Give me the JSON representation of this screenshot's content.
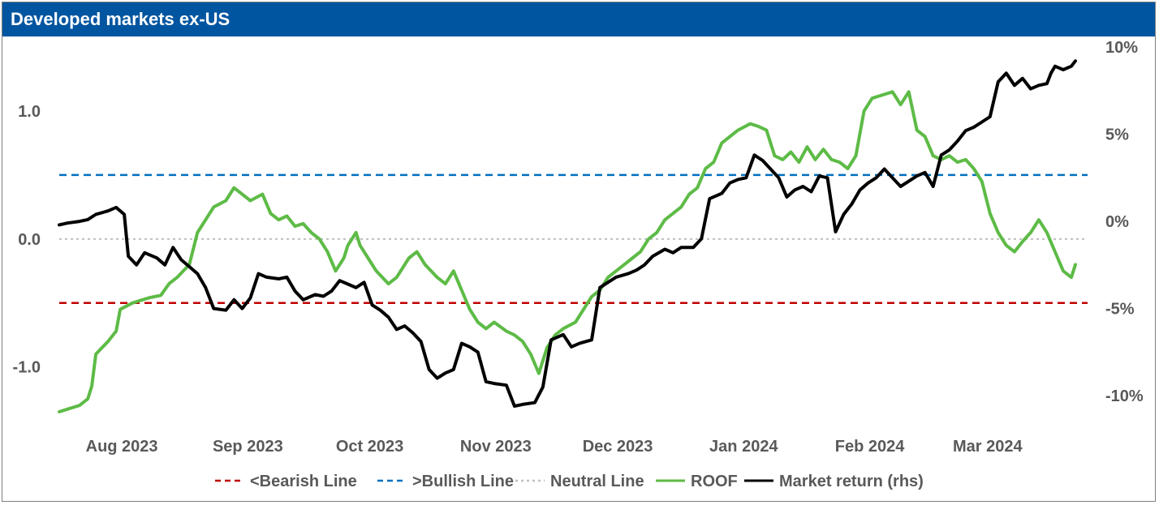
{
  "title": "Developed markets ex-US",
  "colors": {
    "title_bg": "#0055a0",
    "bearish": "#c00000",
    "bullish": "#0070c0",
    "neutral": "#bfbfbf",
    "roof": "#5dbb46",
    "market": "#000000",
    "text": "#595959"
  },
  "chart_data": {
    "type": "line",
    "x_axis": {
      "type": "time",
      "range": [
        "2023-07-19",
        "2024-03-28"
      ],
      "tick_labels": [
        {
          "date": "2023-08-01",
          "label": "Aug 2023"
        },
        {
          "date": "2023-09-01",
          "label": "Sep 2023"
        },
        {
          "date": "2023-10-01",
          "label": "Oct 2023"
        },
        {
          "date": "2023-11-01",
          "label": "Nov 2023"
        },
        {
          "date": "2023-12-01",
          "label": "Dec 2023"
        },
        {
          "date": "2024-01-01",
          "label": "Jan 2024"
        },
        {
          "date": "2024-02-01",
          "label": "Feb 2024"
        },
        {
          "date": "2024-03-01",
          "label": "Mar 2024"
        }
      ]
    },
    "y_left": {
      "range": [
        -1.35,
        1.5
      ],
      "ticks": [
        1.0,
        0.0,
        -1.0
      ],
      "tick_labels": [
        "1.0",
        "0.0",
        "-1.0"
      ]
    },
    "y_right": {
      "range": [
        -11.25,
        10.0
      ],
      "ticks": [
        10,
        5,
        0,
        -5,
        -10
      ],
      "tick_labels": [
        "10%",
        "5%",
        "0%",
        "-5%",
        "-10%"
      ]
    },
    "grid": false,
    "legend_position": "bottom",
    "series": [
      {
        "name": "<Bearish Line",
        "axis": "left",
        "style": "dashed",
        "constant": -0.5
      },
      {
        "name": ">Bullish Line",
        "axis": "left",
        "style": "dashed",
        "constant": 0.5
      },
      {
        "name": "Neutral Line",
        "axis": "left",
        "style": "dotted",
        "constant": 0.0
      },
      {
        "name": "ROOF",
        "axis": "left",
        "style": "solid",
        "points": [
          [
            "2023-07-19",
            -1.35
          ],
          [
            "2023-07-21",
            -1.33
          ],
          [
            "2023-07-24",
            -1.3
          ],
          [
            "2023-07-26",
            -1.25
          ],
          [
            "2023-07-27",
            -1.15
          ],
          [
            "2023-07-28",
            -0.9
          ],
          [
            "2023-07-31",
            -0.8
          ],
          [
            "2023-08-02",
            -0.72
          ],
          [
            "2023-08-03",
            -0.55
          ],
          [
            "2023-08-06",
            -0.5
          ],
          [
            "2023-08-08",
            -0.48
          ],
          [
            "2023-08-10",
            -0.46
          ],
          [
            "2023-08-13",
            -0.44
          ],
          [
            "2023-08-15",
            -0.35
          ],
          [
            "2023-08-17",
            -0.3
          ],
          [
            "2023-08-20",
            -0.2
          ],
          [
            "2023-08-22",
            0.05
          ],
          [
            "2023-08-24",
            0.15
          ],
          [
            "2023-08-26",
            0.25
          ],
          [
            "2023-08-29",
            0.3
          ],
          [
            "2023-08-31",
            0.4
          ],
          [
            "2023-09-02",
            0.35
          ],
          [
            "2023-09-04",
            0.3
          ],
          [
            "2023-09-07",
            0.35
          ],
          [
            "2023-09-09",
            0.2
          ],
          [
            "2023-09-11",
            0.15
          ],
          [
            "2023-09-13",
            0.18
          ],
          [
            "2023-09-15",
            0.1
          ],
          [
            "2023-09-17",
            0.12
          ],
          [
            "2023-09-19",
            0.05
          ],
          [
            "2023-09-21",
            0.0
          ],
          [
            "2023-09-23",
            -0.1
          ],
          [
            "2023-09-25",
            -0.25
          ],
          [
            "2023-09-27",
            -0.15
          ],
          [
            "2023-09-28",
            -0.05
          ],
          [
            "2023-09-30",
            0.05
          ],
          [
            "2023-10-01",
            -0.05
          ],
          [
            "2023-10-03",
            -0.15
          ],
          [
            "2023-10-05",
            -0.25
          ],
          [
            "2023-10-08",
            -0.35
          ],
          [
            "2023-10-10",
            -0.3
          ],
          [
            "2023-10-13",
            -0.15
          ],
          [
            "2023-10-15",
            -0.1
          ],
          [
            "2023-10-17",
            -0.2
          ],
          [
            "2023-10-20",
            -0.3
          ],
          [
            "2023-10-22",
            -0.35
          ],
          [
            "2023-10-24",
            -0.25
          ],
          [
            "2023-10-26",
            -0.4
          ],
          [
            "2023-10-28",
            -0.55
          ],
          [
            "2023-10-30",
            -0.65
          ],
          [
            "2023-11-01",
            -0.7
          ],
          [
            "2023-11-03",
            -0.65
          ],
          [
            "2023-11-06",
            -0.72
          ],
          [
            "2023-11-08",
            -0.75
          ],
          [
            "2023-11-10",
            -0.8
          ],
          [
            "2023-11-12",
            -0.9
          ],
          [
            "2023-11-14",
            -1.05
          ],
          [
            "2023-11-16",
            -0.85
          ],
          [
            "2023-11-18",
            -0.75
          ],
          [
            "2023-11-20",
            -0.7
          ],
          [
            "2023-11-23",
            -0.65
          ],
          [
            "2023-11-25",
            -0.55
          ],
          [
            "2023-11-27",
            -0.45
          ],
          [
            "2023-11-29",
            -0.4
          ],
          [
            "2023-12-01",
            -0.3
          ],
          [
            "2023-12-03",
            -0.25
          ],
          [
            "2023-12-05",
            -0.2
          ],
          [
            "2023-12-07",
            -0.15
          ],
          [
            "2023-12-09",
            -0.1
          ],
          [
            "2023-12-11",
            0.0
          ],
          [
            "2023-12-13",
            0.05
          ],
          [
            "2023-12-15",
            0.15
          ],
          [
            "2023-12-17",
            0.2
          ],
          [
            "2023-12-19",
            0.25
          ],
          [
            "2023-12-21",
            0.35
          ],
          [
            "2023-12-23",
            0.4
          ],
          [
            "2023-12-25",
            0.55
          ],
          [
            "2023-12-27",
            0.6
          ],
          [
            "2023-12-29",
            0.75
          ],
          [
            "2023-12-31",
            0.8
          ],
          [
            "2024-01-02",
            0.85
          ],
          [
            "2024-01-05",
            0.9
          ],
          [
            "2024-01-07",
            0.88
          ],
          [
            "2024-01-09",
            0.85
          ],
          [
            "2024-01-11",
            0.65
          ],
          [
            "2024-01-13",
            0.62
          ],
          [
            "2024-01-15",
            0.68
          ],
          [
            "2024-01-17",
            0.6
          ],
          [
            "2024-01-19",
            0.72
          ],
          [
            "2024-01-21",
            0.62
          ],
          [
            "2024-01-23",
            0.7
          ],
          [
            "2024-01-25",
            0.62
          ],
          [
            "2024-01-27",
            0.6
          ],
          [
            "2024-01-29",
            0.55
          ],
          [
            "2024-01-31",
            0.65
          ],
          [
            "2024-02-02",
            1.0
          ],
          [
            "2024-02-04",
            1.1
          ],
          [
            "2024-02-06",
            1.12
          ],
          [
            "2024-02-09",
            1.15
          ],
          [
            "2024-02-11",
            1.05
          ],
          [
            "2024-02-13",
            1.15
          ],
          [
            "2024-02-15",
            0.85
          ],
          [
            "2024-02-17",
            0.8
          ],
          [
            "2024-02-19",
            0.65
          ],
          [
            "2024-02-21",
            0.62
          ],
          [
            "2024-02-23",
            0.65
          ],
          [
            "2024-02-25",
            0.6
          ],
          [
            "2024-02-27",
            0.62
          ],
          [
            "2024-02-29",
            0.55
          ],
          [
            "2024-03-02",
            0.45
          ],
          [
            "2024-03-04",
            0.2
          ],
          [
            "2024-03-06",
            0.05
          ],
          [
            "2024-03-08",
            -0.05
          ],
          [
            "2024-03-10",
            -0.1
          ],
          [
            "2024-03-12",
            -0.02
          ],
          [
            "2024-03-14",
            0.05
          ],
          [
            "2024-03-16",
            0.15
          ],
          [
            "2024-03-18",
            0.05
          ],
          [
            "2024-03-20",
            -0.1
          ],
          [
            "2024-03-22",
            -0.25
          ],
          [
            "2024-03-24",
            -0.3
          ],
          [
            "2024-03-25",
            -0.2
          ]
        ]
      },
      {
        "name": "Market return (rhs)",
        "axis": "right",
        "style": "solid",
        "points": [
          [
            "2023-07-19",
            -0.2
          ],
          [
            "2023-07-21",
            -0.1
          ],
          [
            "2023-07-24",
            0.0
          ],
          [
            "2023-07-26",
            0.1
          ],
          [
            "2023-07-28",
            0.4
          ],
          [
            "2023-07-31",
            0.6
          ],
          [
            "2023-08-02",
            0.8
          ],
          [
            "2023-08-04",
            0.4
          ],
          [
            "2023-08-05",
            -2.0
          ],
          [
            "2023-08-07",
            -2.5
          ],
          [
            "2023-08-09",
            -1.8
          ],
          [
            "2023-08-12",
            -2.1
          ],
          [
            "2023-08-14",
            -2.5
          ],
          [
            "2023-08-16",
            -1.5
          ],
          [
            "2023-08-18",
            -2.2
          ],
          [
            "2023-08-20",
            -2.6
          ],
          [
            "2023-08-22",
            -3.0
          ],
          [
            "2023-08-24",
            -3.8
          ],
          [
            "2023-08-26",
            -5.0
          ],
          [
            "2023-08-29",
            -5.1
          ],
          [
            "2023-08-31",
            -4.5
          ],
          [
            "2023-09-02",
            -5.0
          ],
          [
            "2023-09-04",
            -4.4
          ],
          [
            "2023-09-06",
            -3.0
          ],
          [
            "2023-09-08",
            -3.2
          ],
          [
            "2023-09-11",
            -3.3
          ],
          [
            "2023-09-13",
            -3.2
          ],
          [
            "2023-09-15",
            -4.0
          ],
          [
            "2023-09-17",
            -4.5
          ],
          [
            "2023-09-20",
            -4.2
          ],
          [
            "2023-09-22",
            -4.3
          ],
          [
            "2023-09-24",
            -4.0
          ],
          [
            "2023-09-26",
            -3.4
          ],
          [
            "2023-09-28",
            -3.6
          ],
          [
            "2023-09-30",
            -3.8
          ],
          [
            "2023-10-02",
            -3.5
          ],
          [
            "2023-10-04",
            -4.8
          ],
          [
            "2023-10-06",
            -5.1
          ],
          [
            "2023-10-08",
            -5.5
          ],
          [
            "2023-10-10",
            -6.2
          ],
          [
            "2023-10-12",
            -6.0
          ],
          [
            "2023-10-14",
            -6.4
          ],
          [
            "2023-10-16",
            -6.9
          ],
          [
            "2023-10-18",
            -8.5
          ],
          [
            "2023-10-20",
            -9.0
          ],
          [
            "2023-10-22",
            -8.7
          ],
          [
            "2023-10-24",
            -8.5
          ],
          [
            "2023-10-26",
            -7.0
          ],
          [
            "2023-10-28",
            -7.2
          ],
          [
            "2023-10-30",
            -7.5
          ],
          [
            "2023-11-01",
            -9.2
          ],
          [
            "2023-11-03",
            -9.3
          ],
          [
            "2023-11-06",
            -9.4
          ],
          [
            "2023-11-08",
            -10.6
          ],
          [
            "2023-11-10",
            -10.5
          ],
          [
            "2023-11-13",
            -10.4
          ],
          [
            "2023-11-15",
            -9.5
          ],
          [
            "2023-11-17",
            -6.8
          ],
          [
            "2023-11-20",
            -6.5
          ],
          [
            "2023-11-22",
            -7.2
          ],
          [
            "2023-11-24",
            -7.0
          ],
          [
            "2023-11-27",
            -6.8
          ],
          [
            "2023-11-29",
            -3.8
          ],
          [
            "2023-12-01",
            -3.5
          ],
          [
            "2023-12-03",
            -3.2
          ],
          [
            "2023-12-06",
            -3.0
          ],
          [
            "2023-12-08",
            -2.8
          ],
          [
            "2023-12-10",
            -2.5
          ],
          [
            "2023-12-12",
            -2.0
          ],
          [
            "2023-12-15",
            -1.6
          ],
          [
            "2023-12-17",
            -1.8
          ],
          [
            "2023-12-19",
            -1.5
          ],
          [
            "2023-12-22",
            -1.5
          ],
          [
            "2023-12-24",
            -1.0
          ],
          [
            "2023-12-26",
            1.3
          ],
          [
            "2023-12-29",
            1.6
          ],
          [
            "2023-12-31",
            2.2
          ],
          [
            "2024-01-02",
            2.4
          ],
          [
            "2024-01-04",
            2.5
          ],
          [
            "2024-01-06",
            3.8
          ],
          [
            "2024-01-08",
            3.5
          ],
          [
            "2024-01-10",
            3.0
          ],
          [
            "2024-01-12",
            2.5
          ],
          [
            "2024-01-14",
            1.4
          ],
          [
            "2024-01-16",
            1.8
          ],
          [
            "2024-01-18",
            2.0
          ],
          [
            "2024-01-20",
            1.7
          ],
          [
            "2024-01-22",
            2.6
          ],
          [
            "2024-01-24",
            2.5
          ],
          [
            "2024-01-26",
            -0.6
          ],
          [
            "2024-01-28",
            0.4
          ],
          [
            "2024-01-30",
            1.0
          ],
          [
            "2024-02-01",
            1.8
          ],
          [
            "2024-02-03",
            2.2
          ],
          [
            "2024-02-05",
            2.5
          ],
          [
            "2024-02-07",
            3.0
          ],
          [
            "2024-02-09",
            2.5
          ],
          [
            "2024-02-11",
            2.0
          ],
          [
            "2024-02-13",
            2.3
          ],
          [
            "2024-02-15",
            2.6
          ],
          [
            "2024-02-17",
            2.8
          ],
          [
            "2024-02-19",
            2.0
          ],
          [
            "2024-02-21",
            3.8
          ],
          [
            "2024-02-23",
            4.1
          ],
          [
            "2024-02-25",
            4.6
          ],
          [
            "2024-02-27",
            5.2
          ],
          [
            "2024-02-29",
            5.4
          ],
          [
            "2024-03-02",
            5.7
          ],
          [
            "2024-03-04",
            6.0
          ],
          [
            "2024-03-06",
            8.0
          ],
          [
            "2024-03-08",
            8.5
          ],
          [
            "2024-03-10",
            7.8
          ],
          [
            "2024-03-12",
            8.2
          ],
          [
            "2024-03-14",
            7.6
          ],
          [
            "2024-03-16",
            7.8
          ],
          [
            "2024-03-18",
            7.9
          ],
          [
            "2024-03-19",
            8.5
          ],
          [
            "2024-03-20",
            8.9
          ],
          [
            "2024-03-22",
            8.7
          ],
          [
            "2024-03-24",
            8.9
          ],
          [
            "2024-03-25",
            9.2
          ]
        ]
      }
    ]
  }
}
